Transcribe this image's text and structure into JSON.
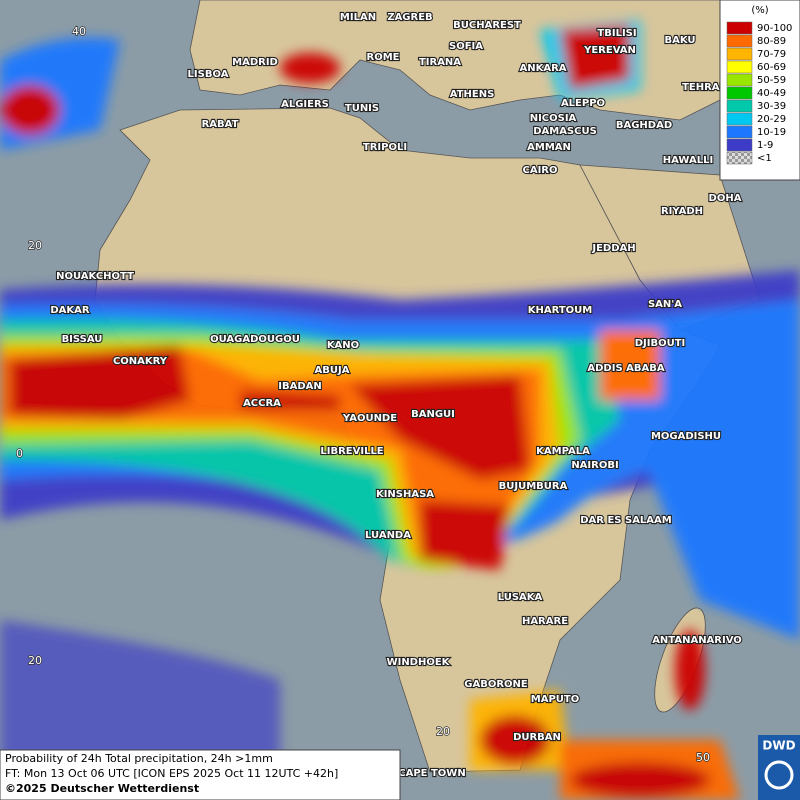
{
  "cities": [
    "MILAN",
    "ZAGREB",
    "BUCHAREST",
    "TBILISI",
    "BAKU",
    "YEREVAN",
    "TEHRAN",
    "MADRID",
    "ROME",
    "SOFIA",
    "ANKARA",
    "LISBOA",
    "TIRANA",
    "ATHENS",
    "ALGIERS",
    "TUNIS",
    "ALEPPO",
    "NICOSIA",
    "RABAT",
    "TRIPOLI",
    "DAMASCUS",
    "BAGHDAD",
    "AMMAN",
    "HAWALLI",
    "CAIRO",
    "DOHA",
    "RIYADH",
    "JEDDAH",
    "NOUAKCHOTT",
    "DAKAR",
    "KHARTOUM",
    "SAN'A",
    "BISSAU",
    "OUAGADOUGOU",
    "DJIBOUTI",
    "CONAKRY",
    "KANO",
    "ABUJA",
    "ADDIS ABABA",
    "IBADAN",
    "ACCRA",
    "YAOUNDE",
    "BANGUI",
    "MOGADISHU",
    "LIBREVILLE",
    "KAMPALA",
    "NAIROBI",
    "KINSHASA",
    "BUJUMBURA",
    "DAR ES SALAAM",
    "LUANDA",
    "LUSAKA",
    "HARARE",
    "ANTANANARIVO",
    "WINDHOEK",
    "GABORONE",
    "MAPUTO",
    "DURBAN",
    "CAPE TOWN"
  ],
  "grid_labels": [
    "40",
    "20",
    "0",
    "20",
    "20",
    "50"
  ],
  "legend": {
    "unit": "(%)",
    "items": [
      {
        "label": "90-100",
        "color": "#cc0000"
      },
      {
        "label": "80-89",
        "color": "#ff6a00"
      },
      {
        "label": "70-79",
        "color": "#ffb400"
      },
      {
        "label": "60-69",
        "color": "#ffff00"
      },
      {
        "label": "50-59",
        "color": "#9be600"
      },
      {
        "label": "40-49",
        "color": "#00c800"
      },
      {
        "label": "30-39",
        "color": "#00c8aa"
      },
      {
        "label": "20-29",
        "color": "#00c8f0"
      },
      {
        "label": "10-19",
        "color": "#1e78ff"
      },
      {
        "label": "1-9",
        "color": "#3c3cc8"
      },
      {
        "label": "<1",
        "color": "#b4b4b4"
      }
    ]
  },
  "caption": [
    "Probability of 24h Total precipitation, 24h >1mm",
    "FT: Mon 13 Oct 06 UTC [ICON EPS 2025 Oct 11 12UTC +42h]",
    "©2025 Deutscher Wetterdienst"
  ],
  "logo": "DWD"
}
